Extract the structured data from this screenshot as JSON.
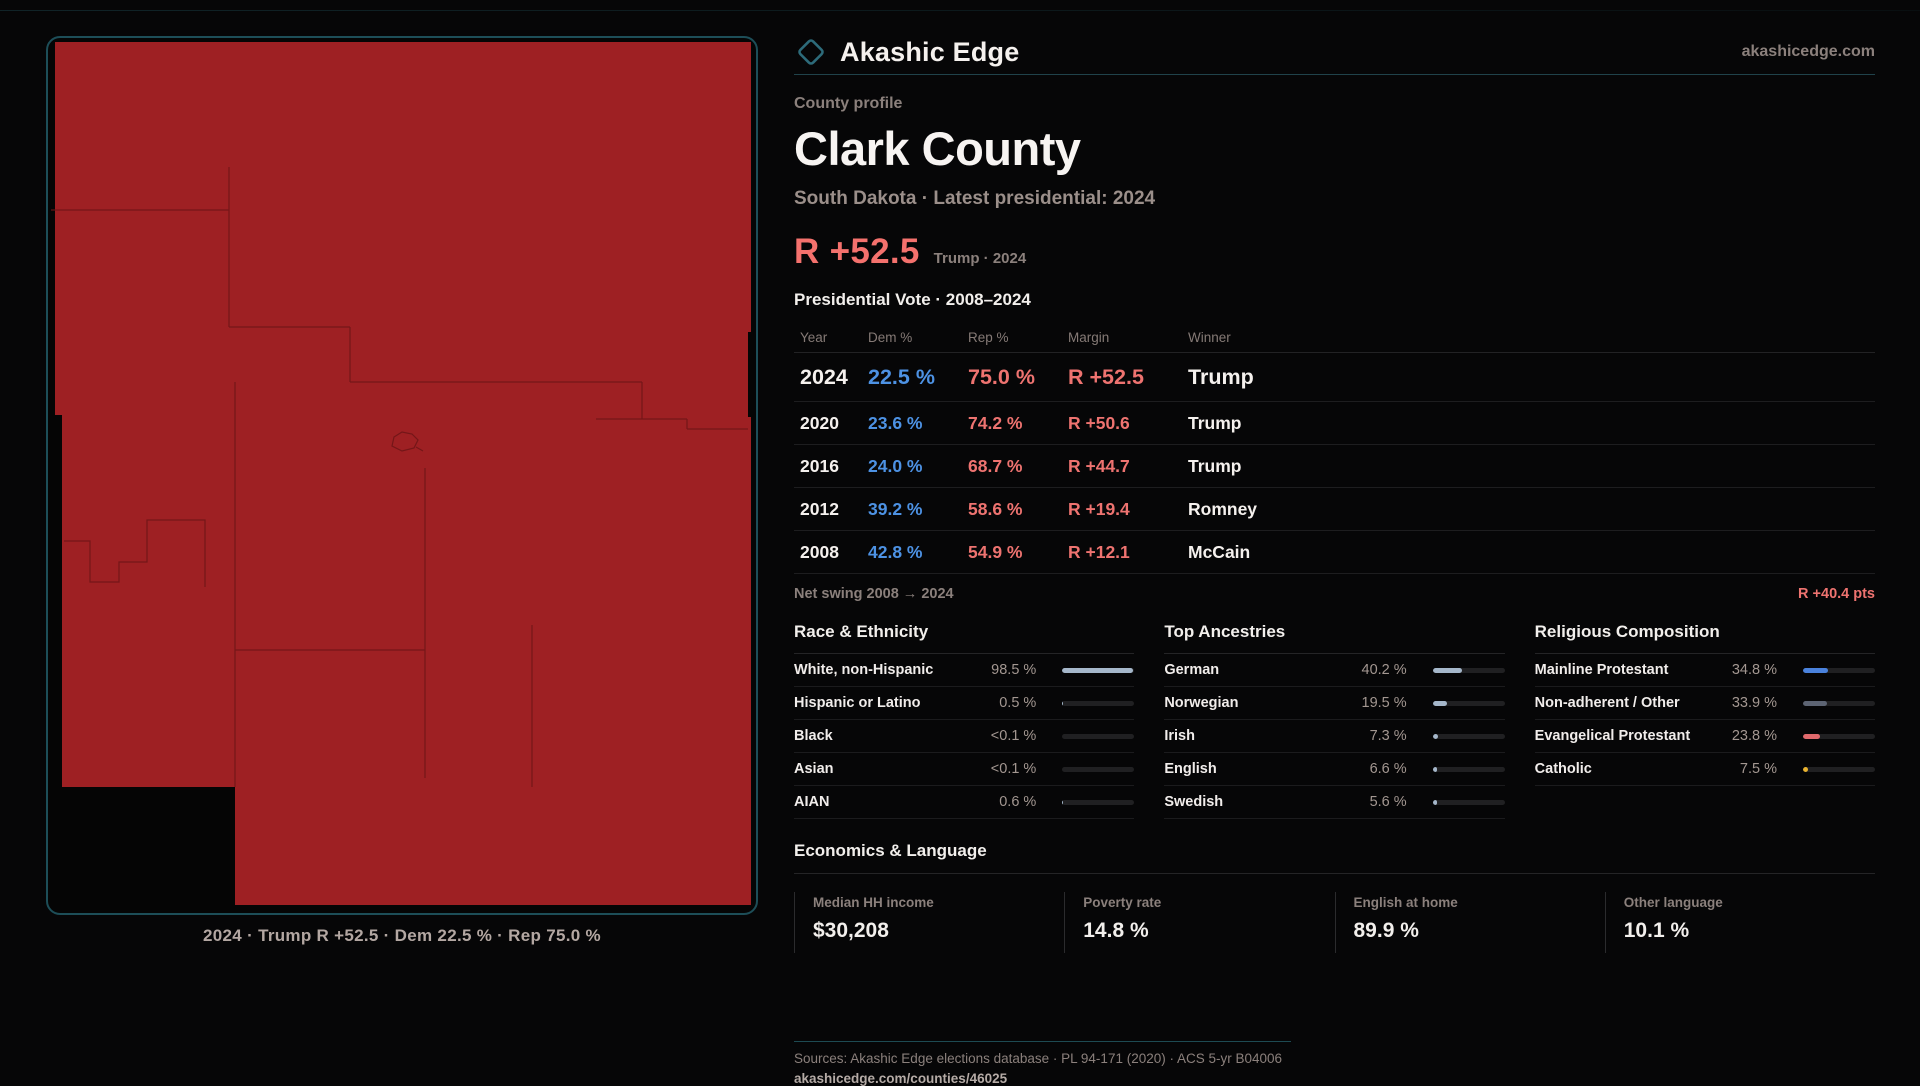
{
  "header": {
    "brand": "Akashic Edge",
    "domain": "akashicedge.com"
  },
  "profile": {
    "eyebrow": "County profile",
    "title": "Clark County",
    "subtitle": "South Dakota · Latest presidential: 2024",
    "headline": {
      "margin": "R +52.5",
      "note": "Trump · 2024"
    }
  },
  "map": {
    "caption": "2024 · Trump R +52.5 · Dem 22.5 % · Rep 75.0 %",
    "fill_color": "#9e2023",
    "border_color": "#1d4e58"
  },
  "vote_table": {
    "title": "Presidential Vote · 2008–2024",
    "columns": {
      "year": "Year",
      "dem": "Dem %",
      "rep": "Rep %",
      "margin": "Margin",
      "winner": "Winner"
    },
    "rows": [
      {
        "year": "2024",
        "dem": "22.5 %",
        "rep": "75.0 %",
        "margin": "R +52.5",
        "winner": "Trump"
      },
      {
        "year": "2020",
        "dem": "23.6 %",
        "rep": "74.2 %",
        "margin": "R +50.6",
        "winner": "Trump"
      },
      {
        "year": "2016",
        "dem": "24.0 %",
        "rep": "68.7 %",
        "margin": "R +44.7",
        "winner": "Trump"
      },
      {
        "year": "2012",
        "dem": "39.2 %",
        "rep": "58.6 %",
        "margin": "R +19.4",
        "winner": "Romney"
      },
      {
        "year": "2008",
        "dem": "42.8 %",
        "rep": "54.9 %",
        "margin": "R +12.1",
        "winner": "McCain"
      }
    ],
    "net_swing": {
      "label": "Net swing 2008 → 2024",
      "value": "R +40.4 pts"
    }
  },
  "demographics": {
    "race": {
      "title": "Race & Ethnicity",
      "rows": [
        {
          "label": "White, non-Hispanic",
          "value": "98.5 %",
          "pct": 98.5,
          "color": "#a5b7ca"
        },
        {
          "label": "Hispanic or Latino",
          "value": "0.5 %",
          "pct": 0.5,
          "color": "#a5b7ca"
        },
        {
          "label": "Black",
          "value": "<0.1 %",
          "pct": 0,
          "color": "#a5b7ca"
        },
        {
          "label": "Asian",
          "value": "<0.1 %",
          "pct": 0,
          "color": "#a5b7ca"
        },
        {
          "label": "AIAN",
          "value": "0.6 %",
          "pct": 0.6,
          "color": "#a5b7ca"
        }
      ]
    },
    "ancestries": {
      "title": "Top Ancestries",
      "rows": [
        {
          "label": "German",
          "value": "40.2 %",
          "pct": 40.2,
          "color": "#a5b7ca"
        },
        {
          "label": "Norwegian",
          "value": "19.5 %",
          "pct": 19.5,
          "color": "#a5b7ca"
        },
        {
          "label": "Irish",
          "value": "7.3 %",
          "pct": 7.3,
          "color": "#a5b7ca"
        },
        {
          "label": "English",
          "value": "6.6 %",
          "pct": 6.6,
          "color": "#a5b7ca"
        },
        {
          "label": "Swedish",
          "value": "5.6 %",
          "pct": 5.6,
          "color": "#a5b7ca"
        }
      ]
    },
    "religion": {
      "title": "Religious Composition",
      "rows": [
        {
          "label": "Mainline Protestant",
          "value": "34.8 %",
          "pct": 34.8,
          "color": "#4a82dd"
        },
        {
          "label": "Non-adherent / Other",
          "value": "33.9 %",
          "pct": 33.9,
          "color": "#5d6473"
        },
        {
          "label": "Evangelical Protestant",
          "value": "23.8 %",
          "pct": 23.8,
          "color": "#e0696c"
        },
        {
          "label": "Catholic",
          "value": "7.5 %",
          "pct": 7.5,
          "color": "#eab32f"
        }
      ]
    }
  },
  "economics": {
    "title": "Economics & Language",
    "stats": [
      {
        "label": "Median HH income",
        "value": "$30,208"
      },
      {
        "label": "Poverty rate",
        "value": "14.8 %"
      },
      {
        "label": "English at home",
        "value": "89.9 %"
      },
      {
        "label": "Other language",
        "value": "10.1 %"
      }
    ]
  },
  "footer": {
    "sources": "Sources: Akashic Edge elections database · PL 94-171 (2020) · ACS 5-yr B04006",
    "permalink": "akashicedge.com/counties/46025"
  },
  "colors": {
    "dem": "#4d92e4",
    "rep": "#ee7370",
    "accent_margin": "#f4716d"
  }
}
